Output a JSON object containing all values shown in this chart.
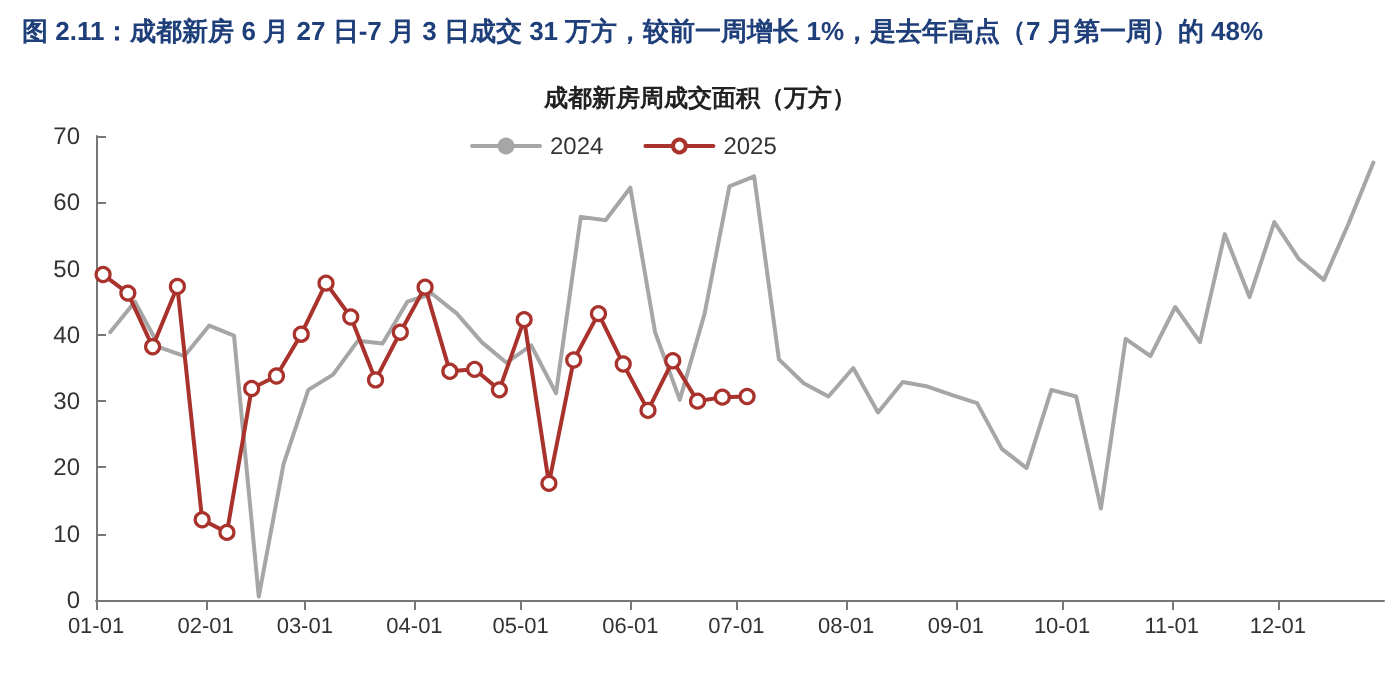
{
  "chart_data": {
    "type": "line",
    "title": "图 2.11：成都新房 6 月 27 日-7 月 3 日成交 31 万方，较前一周增长 1%，是去年高点（7 月第一周）的 48%",
    "subtitle": "成都新房周成交面积（万方）",
    "series": [
      {
        "name": "2024",
        "color": "#a6a6a6",
        "marker": "none",
        "x": [
          "--01-05",
          "--01-12",
          "--01-19",
          "--01-26",
          "--02-02",
          "--02-09",
          "--02-16",
          "--02-23",
          "--03-02",
          "--03-09",
          "--03-16",
          "--03-23",
          "--03-30",
          "--04-06",
          "--04-13",
          "--04-20",
          "--04-27",
          "--05-04",
          "--05-11",
          "--05-18",
          "--05-25",
          "--06-01",
          "--06-08",
          "--06-15",
          "--06-22",
          "--06-29",
          "--07-06",
          "--07-13",
          "--07-20",
          "--07-27",
          "--08-03",
          "--08-10",
          "--08-17",
          "--08-24",
          "--08-31",
          "--09-07",
          "--09-14",
          "--09-21",
          "--09-28",
          "--10-05",
          "--10-12",
          "--10-19",
          "--10-26",
          "--11-02",
          "--11-09",
          "--11-16",
          "--11-23",
          "--11-30",
          "--12-07",
          "--12-14",
          "--12-21",
          "--12-28"
        ],
        "values": [
          40.4,
          45.0,
          38.1,
          36.8,
          41.4,
          39.9,
          0.5,
          20.5,
          31.7,
          34.0,
          39.1,
          38.7,
          45.0,
          46.2,
          43.2,
          38.9,
          35.8,
          38.4,
          31.2,
          57.8,
          57.3,
          62.2,
          40.4,
          30.2,
          43.2,
          62.4,
          63.9,
          36.3,
          32.7,
          30.7,
          35.0,
          28.3,
          32.9,
          32.2,
          30.9,
          29.7,
          22.8,
          19.9,
          31.7,
          30.7,
          13.8,
          39.4,
          36.8,
          44.2,
          38.9,
          55.2,
          45.7,
          57.0,
          51.4,
          48.3,
          56.8,
          66.0
        ]
      },
      {
        "name": "2025",
        "color": "#a9322c",
        "marker": "circle",
        "x": [
          "--01-03",
          "--01-10",
          "--01-17",
          "--01-24",
          "--01-31",
          "--02-07",
          "--02-14",
          "--02-21",
          "--02-28",
          "--03-07",
          "--03-14",
          "--03-21",
          "--03-28",
          "--04-04",
          "--04-11",
          "--04-18",
          "--04-25",
          "--05-02",
          "--05-09",
          "--05-16",
          "--05-23",
          "--05-30",
          "--06-06",
          "--06-13",
          "--06-20",
          "--06-27",
          "--07-04"
        ],
        "values": [
          49.1,
          46.3,
          38.2,
          47.3,
          12.1,
          10.2,
          31.9,
          33.8,
          40.1,
          47.8,
          42.7,
          33.2,
          40.4,
          47.2,
          34.5,
          34.8,
          31.7,
          42.3,
          17.6,
          36.2,
          43.2,
          35.6,
          28.6,
          36.1,
          30.0,
          30.6,
          30.7
        ]
      }
    ],
    "xlim": [
      "--01-01",
      "--12-31"
    ],
    "xticks": [
      {
        "value": "--01-01",
        "label": "01-01"
      },
      {
        "value": "--02-01",
        "label": "02-01"
      },
      {
        "value": "--03-01",
        "label": "03-01"
      },
      {
        "value": "--04-01",
        "label": "04-01"
      },
      {
        "value": "--05-01",
        "label": "05-01"
      },
      {
        "value": "--06-01",
        "label": "06-01"
      },
      {
        "value": "--07-01",
        "label": "07-01"
      },
      {
        "value": "--08-01",
        "label": "08-01"
      },
      {
        "value": "--09-01",
        "label": "09-01"
      },
      {
        "value": "--10-01",
        "label": "10-01"
      },
      {
        "value": "--11-01",
        "label": "11-01"
      },
      {
        "value": "--12-01",
        "label": "12-01"
      }
    ],
    "ylim": [
      0,
      70
    ],
    "yticks": [
      0,
      10,
      20,
      30,
      40,
      50,
      60,
      70
    ],
    "legend": "top",
    "grid": false,
    "line_style": "solid"
  }
}
